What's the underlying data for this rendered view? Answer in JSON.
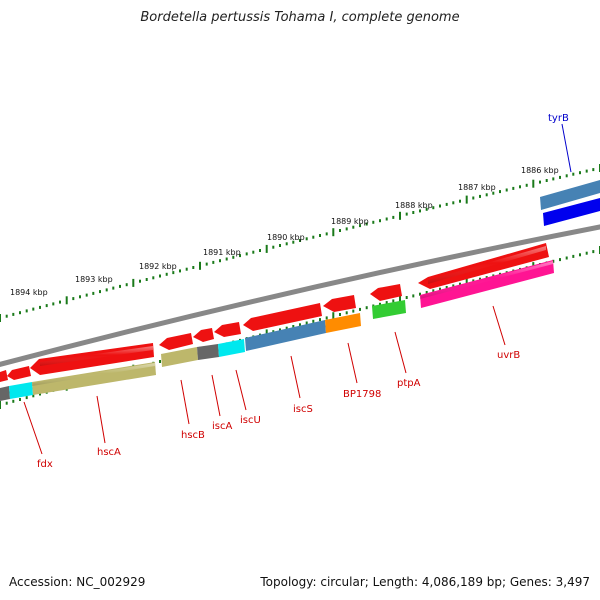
{
  "title": "Bordetella pertussis Tohama I, complete genome",
  "accession": "Accession: NC_002929",
  "topology": "Topology: circular; Length: 4,086,189 bp; Genes: 3,497",
  "ticks": [
    "1886 kbp",
    "1887 kbp",
    "1888 kbp",
    "1889 kbp",
    "1890 kbp",
    "1891 kbp",
    "1892 kbp",
    "1893 kbp",
    "1894 kbp"
  ],
  "genes": [
    "tyrB",
    "fdx",
    "hscA",
    "hscB",
    "iscA",
    "iscU",
    "iscS",
    "BP1798",
    "ptpA",
    "uvrB"
  ],
  "colors": {
    "red": "#ee1111",
    "khaki": "#bdb76b",
    "cyan": "#00e8ee",
    "gray": "#666666",
    "steel": "#4682b4",
    "orange": "#ff8c00",
    "green": "#33cc33",
    "pink": "#ff1493",
    "blue": "#0000ee",
    "backbone": "#888888",
    "tick": "#1a7a1a",
    "label": "#d00000",
    "label_blue": "#0000cc"
  }
}
